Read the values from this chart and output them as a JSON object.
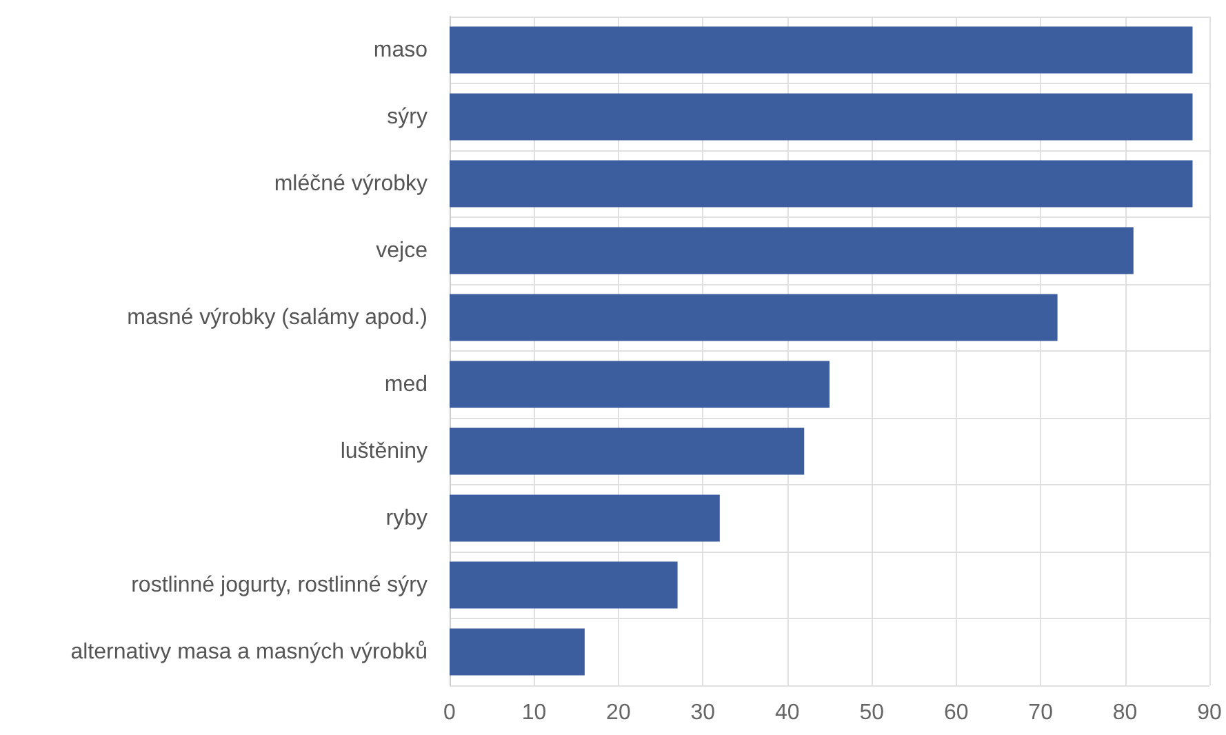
{
  "chart_data": {
    "type": "bar",
    "orientation": "horizontal",
    "categories": [
      "maso",
      "sýry",
      "mléčné výrobky",
      "vejce",
      "masné výrobky (salámy apod.)",
      "med",
      "luštěniny",
      "ryby",
      "rostlinné jogurty, rostlinné sýry",
      "alternativy masa a masných výrobků"
    ],
    "values": [
      88,
      88,
      88,
      81,
      72,
      45,
      42,
      32,
      27,
      16
    ],
    "color": "#3d5e9e",
    "xlim": [
      0,
      90
    ],
    "xticks": [
      0,
      10,
      20,
      30,
      40,
      50,
      60,
      70,
      80,
      90
    ],
    "grid": true
  }
}
